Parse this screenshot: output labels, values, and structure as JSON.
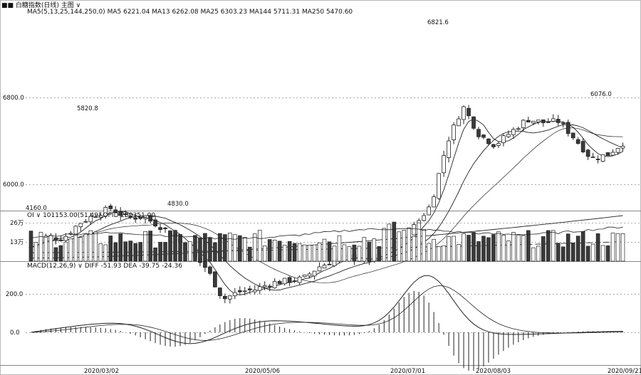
{
  "header": {
    "symbol_line": "■■ 白糖指数(日线) 主图 ∨",
    "ma_label": "MA5(5,13,25,144,250,0)",
    "ma_values": [
      {
        "name": "MA5",
        "value": "6221.04"
      },
      {
        "name": "MA13",
        "value": "6262.08"
      },
      {
        "name": "MA25",
        "value": "6303.23"
      },
      {
        "name": "MA144",
        "value": "5711.31"
      },
      {
        "name": "MA250",
        "value": "5470.60"
      }
    ]
  },
  "vol_header": {
    "label": "OI ∨",
    "vol_value": "101153.00(51.49)",
    "opid_label": "OPID",
    "opid_value": "200351.00"
  },
  "macd_header": {
    "label": "MACD(12,26,9) ∨",
    "diff_label": "DIFF",
    "diff_value": "-51.93",
    "dea_label": "DEA",
    "dea_value": "-39.75",
    "macd_value": "-24.36"
  },
  "colors": {
    "up": "#ffffff",
    "down": "#3a3a3a",
    "line": "#222222",
    "grid": "#999999",
    "background": "#ffffff"
  },
  "chart_data": [
    {
      "type": "candlestick",
      "panel": "price",
      "ytick_labels": [
        "6800.0",
        "6000.0"
      ],
      "yticks": [
        6800,
        6000
      ],
      "annotations": [
        {
          "label": "5820.8",
          "date": "2020/02/14"
        },
        {
          "label": "4830.0",
          "date": "2020/04/02"
        },
        {
          "label": "4160.0",
          "date": "2020/01/02"
        },
        {
          "label": "6821.6",
          "date": "2020/07/13"
        },
        {
          "label": "6076.0",
          "date": "2020/08/31"
        }
      ],
      "close_series": [
        {
          "date": "2020/01/02",
          "value": 5420
        },
        {
          "date": "2020/01/09",
          "value": 5520
        },
        {
          "date": "2020/01/16",
          "value": 5500
        },
        {
          "date": "2020/01/23",
          "value": 5640
        },
        {
          "date": "2020/02/06",
          "value": 5720
        },
        {
          "date": "2020/02/14",
          "value": 5780
        },
        {
          "date": "2020/02/21",
          "value": 5690
        },
        {
          "date": "2020/02/28",
          "value": 5700
        },
        {
          "date": "2020/03/06",
          "value": 5620
        },
        {
          "date": "2020/03/13",
          "value": 5520
        },
        {
          "date": "2020/03/20",
          "value": 5360
        },
        {
          "date": "2020/03/27",
          "value": 5220
        },
        {
          "date": "2020/04/02",
          "value": 4940
        },
        {
          "date": "2020/04/10",
          "value": 5010
        },
        {
          "date": "2020/04/17",
          "value": 5030
        },
        {
          "date": "2020/04/24",
          "value": 5090
        },
        {
          "date": "2020/05/01",
          "value": 5110
        },
        {
          "date": "2020/05/08",
          "value": 5130
        },
        {
          "date": "2020/05/15",
          "value": 5240
        },
        {
          "date": "2020/05/22",
          "value": 5300
        },
        {
          "date": "2020/05/29",
          "value": 5330
        },
        {
          "date": "2020/06/05",
          "value": 5290
        },
        {
          "date": "2020/06/12",
          "value": 5370
        },
        {
          "date": "2020/06/19",
          "value": 5450
        },
        {
          "date": "2020/06/26",
          "value": 5620
        },
        {
          "date": "2020/07/01",
          "value": 5810
        },
        {
          "date": "2020/07/07",
          "value": 6380
        },
        {
          "date": "2020/07/13",
          "value": 6720
        },
        {
          "date": "2020/07/17",
          "value": 6460
        },
        {
          "date": "2020/07/24",
          "value": 6360
        },
        {
          "date": "2020/07/31",
          "value": 6480
        },
        {
          "date": "2020/08/07",
          "value": 6600
        },
        {
          "date": "2020/08/14",
          "value": 6570
        },
        {
          "date": "2020/08/21",
          "value": 6580
        },
        {
          "date": "2020/08/28",
          "value": 6420
        },
        {
          "date": "2020/09/04",
          "value": 6240
        },
        {
          "date": "2020/09/11",
          "value": 6270
        },
        {
          "date": "2020/09/21",
          "value": 6380
        }
      ],
      "series": [
        {
          "name": "MA5",
          "values": [
            6221.04
          ]
        },
        {
          "name": "MA13",
          "values": [
            6262.08
          ]
        },
        {
          "name": "MA25",
          "values": [
            6303.23
          ]
        },
        {
          "name": "MA144",
          "values": [
            5711.31
          ]
        },
        {
          "name": "MA250",
          "values": [
            5470.6
          ]
        }
      ]
    },
    {
      "type": "bar",
      "panel": "volume",
      "ytick_labels": [
        "26万",
        "13万"
      ],
      "yticks": [
        260000,
        130000
      ],
      "last_value": 101153.0,
      "open_interest_last": 200351.0
    },
    {
      "type": "bar",
      "panel": "macd",
      "ytick_labels": [
        "200.0",
        "0.0"
      ],
      "yticks": [
        200,
        0
      ],
      "series": [
        {
          "name": "DIFF",
          "values": [
            -51.93
          ]
        },
        {
          "name": "DEA",
          "values": [
            -39.75
          ]
        },
        {
          "name": "MACD",
          "values": [
            -24.36
          ]
        }
      ]
    }
  ],
  "x_axis": {
    "tick_labels": [
      "2020/03/02",
      "2020/05/06",
      "2020/07/01",
      "2020/08/03",
      "2020/09/21"
    ]
  }
}
